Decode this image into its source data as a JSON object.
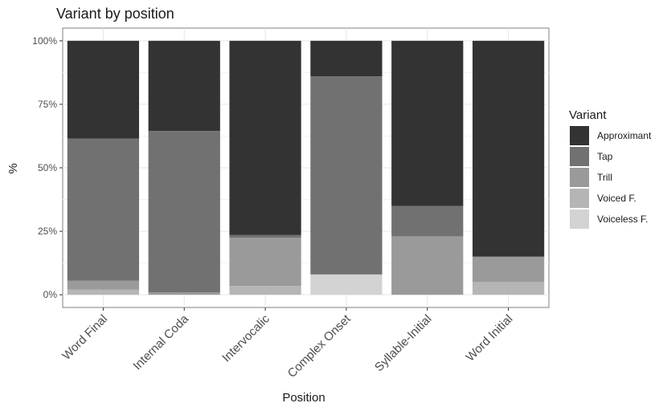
{
  "chart_data": {
    "type": "bar",
    "stacked": true,
    "title": "Variant by position",
    "xlabel": "Position",
    "ylabel": "%",
    "ylim": [
      0,
      1.05
    ],
    "yticks": [
      0,
      0.25,
      0.5,
      0.75,
      1.0
    ],
    "ytick_labels": [
      "0%",
      "25%",
      "50%",
      "75%",
      "100%"
    ],
    "grid": true,
    "legend_position": "right",
    "legend_title": "Variant",
    "categories": [
      "Word Final",
      "Internal Coda",
      "Intervocalic",
      "Complex Onset",
      "Syllable-Initial",
      "Word Initial"
    ],
    "series": [
      {
        "name": "Voiceless F.",
        "color": "#d3d3d3",
        "values": [
          0.0,
          0.0,
          0.0,
          0.08,
          0.0,
          0.0
        ]
      },
      {
        "name": "Voiced F.",
        "color": "#b5b5b5",
        "values": [
          0.02,
          0.0,
          0.035,
          0.0,
          0.0,
          0.05
        ]
      },
      {
        "name": "Trill",
        "color": "#9a9a9a",
        "values": [
          0.035,
          0.01,
          0.19,
          0.0,
          0.23,
          0.1
        ]
      },
      {
        "name": "Tap",
        "color": "#717171",
        "values": [
          0.56,
          0.635,
          0.01,
          0.78,
          0.12,
          0.0
        ]
      },
      {
        "name": "Approximant",
        "color": "#333333",
        "values": [
          0.385,
          0.355,
          0.765,
          0.14,
          0.65,
          0.85
        ]
      }
    ],
    "legend_order": [
      "Approximant",
      "Tap",
      "Trill",
      "Voiced F.",
      "Voiceless F."
    ]
  }
}
